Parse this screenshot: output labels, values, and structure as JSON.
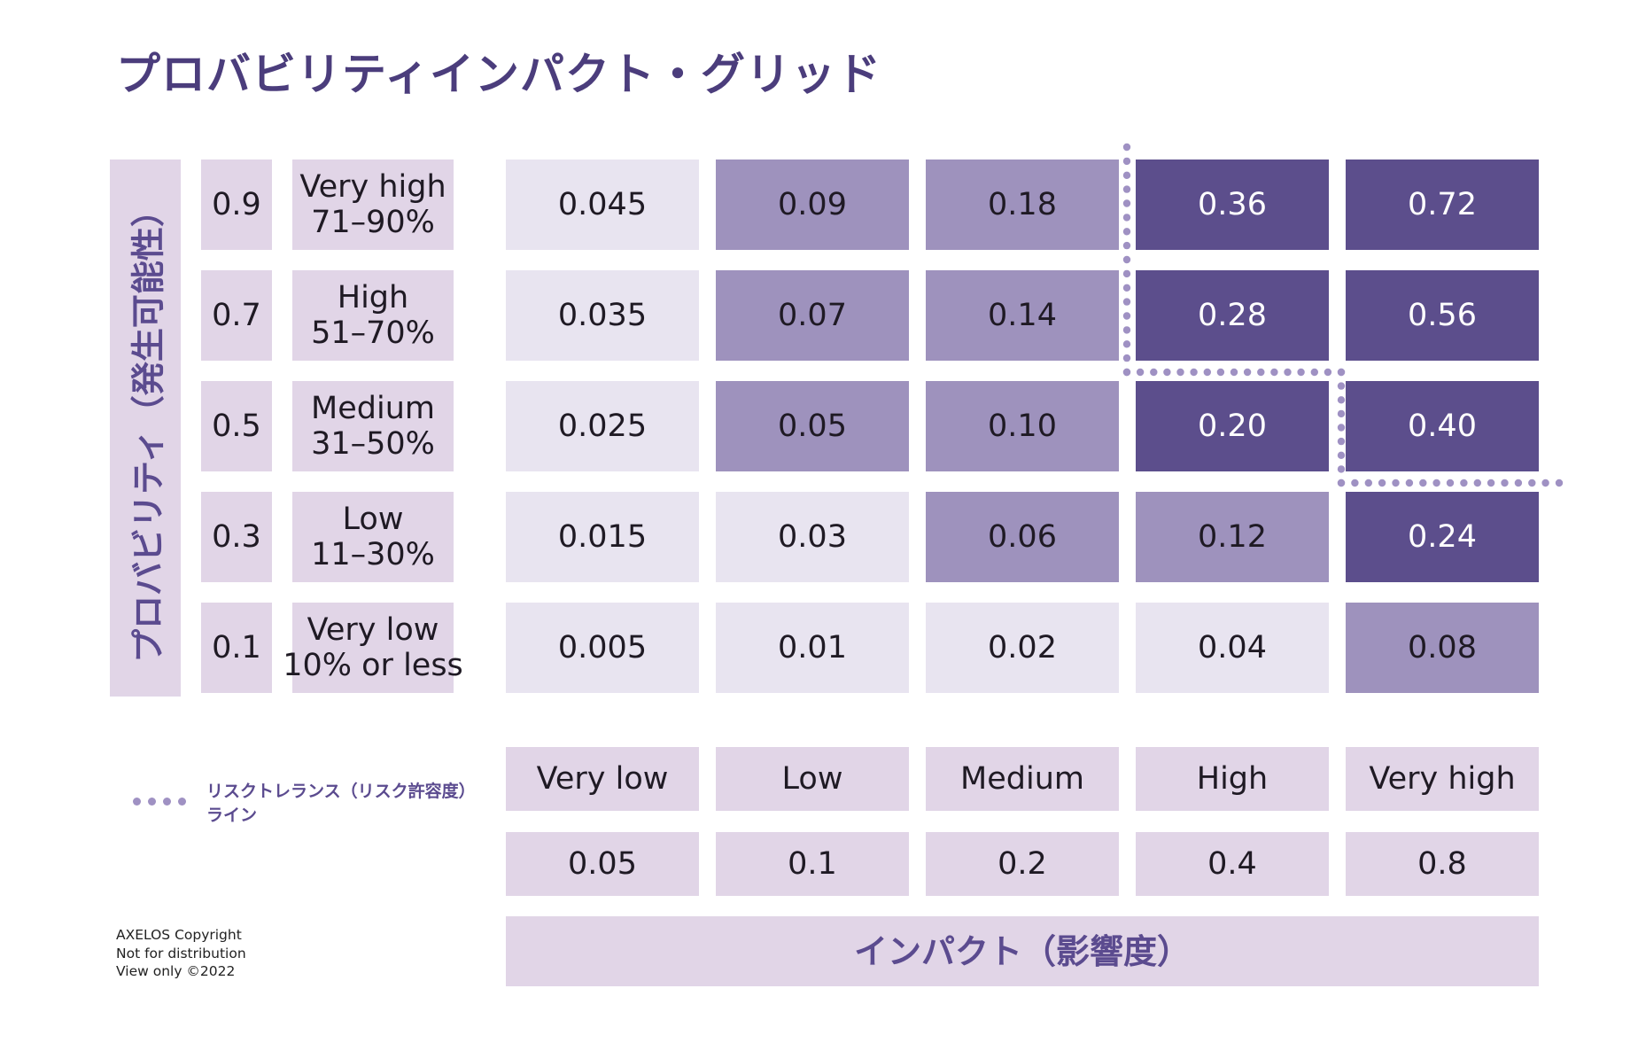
{
  "title": "プロバビリティインパクト・グリッド",
  "y_axis_label": "プロバビリティ（発生可能性）",
  "x_axis_label": "インパクト（影響度）",
  "probability_rows": [
    {
      "value": "0.9",
      "label_line1": "Very high",
      "label_line2": "71–90%"
    },
    {
      "value": "0.7",
      "label_line1": "High",
      "label_line2": "51–70%"
    },
    {
      "value": "0.5",
      "label_line1": "Medium",
      "label_line2": "31–50%"
    },
    {
      "value": "0.3",
      "label_line1": "Low",
      "label_line2": "11–30%"
    },
    {
      "value": "0.1",
      "label_line1": "Very low",
      "label_line2": "10% or less"
    }
  ],
  "impact_columns": [
    {
      "label": "Very low",
      "value": "0.05"
    },
    {
      "label": "Low",
      "value": "0.1"
    },
    {
      "label": "Medium",
      "value": "0.2"
    },
    {
      "label": "High",
      "value": "0.4"
    },
    {
      "label": "Very high",
      "value": "0.8"
    }
  ],
  "grid_values": [
    [
      "0.045",
      "0.09",
      "0.18",
      "0.36",
      "0.72"
    ],
    [
      "0.035",
      "0.07",
      "0.14",
      "0.28",
      "0.56"
    ],
    [
      "0.025",
      "0.05",
      "0.10",
      "0.20",
      "0.40"
    ],
    [
      "0.015",
      "0.03",
      "0.06",
      "0.12",
      "0.24"
    ],
    [
      "0.005",
      "0.01",
      "0.02",
      "0.04",
      "0.08"
    ]
  ],
  "grid_levels": [
    [
      0,
      1,
      1,
      2,
      2
    ],
    [
      0,
      1,
      1,
      2,
      2
    ],
    [
      0,
      1,
      1,
      2,
      2
    ],
    [
      0,
      0,
      1,
      1,
      2
    ],
    [
      0,
      0,
      0,
      0,
      1
    ]
  ],
  "level_colors": {
    "0": {
      "bg": "#e8e4f0",
      "fg": "#1f1a24"
    },
    "1": {
      "bg": "#9e92bd",
      "fg": "#1f1a24"
    },
    "2": {
      "bg": "#5c4e8c",
      "fg": "#ffffff"
    }
  },
  "axis_cell_color": "#e1d5e7",
  "tolerance_line_color": "#9f91c3",
  "legend": {
    "line1": "リスクトレランス（リスク許容度）",
    "line2": "ライン"
  },
  "copyright": {
    "line1": "AXELOS Copyright",
    "line2": "Not for distribution",
    "line3": "View only ©2022"
  }
}
